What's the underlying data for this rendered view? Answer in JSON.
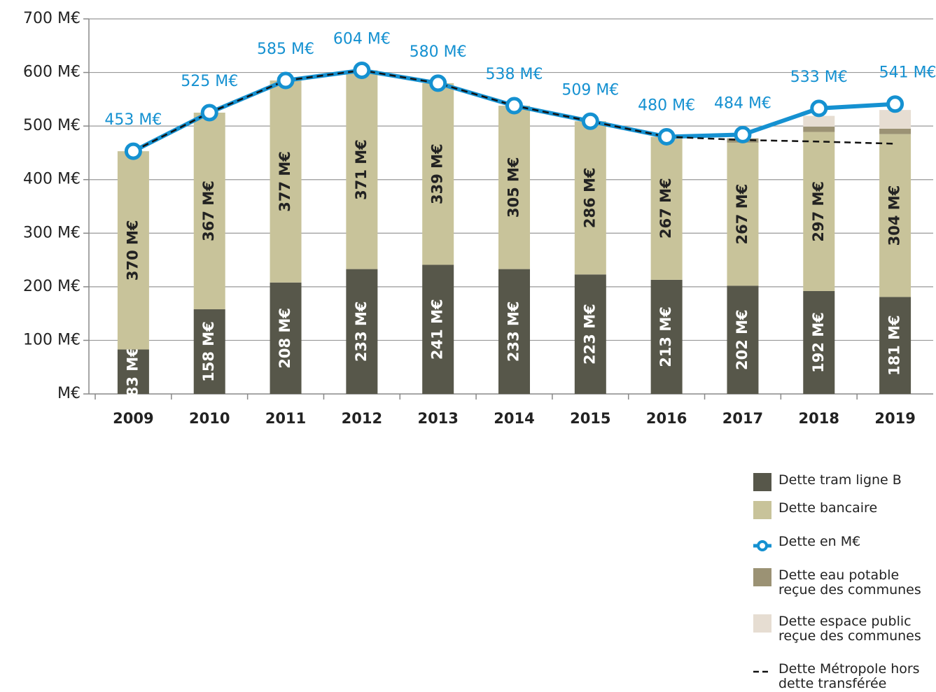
{
  "chart_data": {
    "type": "stacked-bar-line",
    "categories": [
      "2009",
      "2010",
      "2011",
      "2012",
      "2013",
      "2014",
      "2015",
      "2016",
      "2017",
      "2018",
      "2019"
    ],
    "ylim": [
      0,
      700
    ],
    "yticks": [
      {
        "value": 0,
        "label": "M€"
      },
      {
        "value": 100,
        "label": "100 M€"
      },
      {
        "value": 200,
        "label": "200 M€"
      },
      {
        "value": 300,
        "label": "300 M€"
      },
      {
        "value": 400,
        "label": "400 M€"
      },
      {
        "value": 500,
        "label": "500 M€"
      },
      {
        "value": 600,
        "label": "600 M€"
      },
      {
        "value": 700,
        "label": "700 M€"
      }
    ],
    "grid": true,
    "series": [
      {
        "name": "Dette tram ligne B",
        "color": "#57574a",
        "kind": "bar",
        "values": [
          83,
          158,
          208,
          233,
          241,
          233,
          223,
          213,
          202,
          192,
          181
        ],
        "value_labels": [
          "83 M€",
          "158 M€",
          "208 M€",
          "233 M€",
          "241 M€",
          "233 M€",
          "223 M€",
          "213 M€",
          "202 M€",
          "192 M€",
          "181 M€"
        ]
      },
      {
        "name": "Dette bancaire",
        "color": "#c8c39a",
        "kind": "bar",
        "values": [
          370,
          367,
          377,
          371,
          339,
          305,
          286,
          267,
          267,
          297,
          304
        ],
        "value_labels": [
          "370 M€",
          "367 M€",
          "377 M€",
          "371 M€",
          "339 M€",
          "305 M€",
          "286 M€",
          "267 M€",
          "267 M€",
          "297 M€",
          "304 M€"
        ]
      },
      {
        "name": "Dette en M€",
        "color": "#1591d1",
        "kind": "line",
        "values": [
          453,
          525,
          585,
          604,
          580,
          538,
          509,
          480,
          484,
          533,
          541
        ],
        "value_labels": [
          "453 M€",
          "525 M€",
          "585 M€",
          "604 M€",
          "580 M€",
          "538 M€",
          "509 M€",
          "480 M€",
          "484 M€",
          "533 M€",
          "541 M€"
        ]
      },
      {
        "name": "Dette eau potable reçue des communes",
        "color": "#9b9274",
        "kind": "bar",
        "values": [
          null,
          null,
          null,
          null,
          null,
          null,
          null,
          null,
          8,
          10,
          10
        ]
      },
      {
        "name": "Dette espace public reçue des communes",
        "color": "#e6ddd2",
        "kind": "bar",
        "values": [
          null,
          null,
          null,
          null,
          null,
          null,
          null,
          null,
          null,
          20,
          35
        ]
      },
      {
        "name": "Dette Métropole hors dette transférée",
        "color": "#111111",
        "kind": "dashed",
        "values": [
          453,
          525,
          585,
          604,
          580,
          538,
          509,
          480,
          474,
          471,
          467
        ]
      }
    ]
  }
}
